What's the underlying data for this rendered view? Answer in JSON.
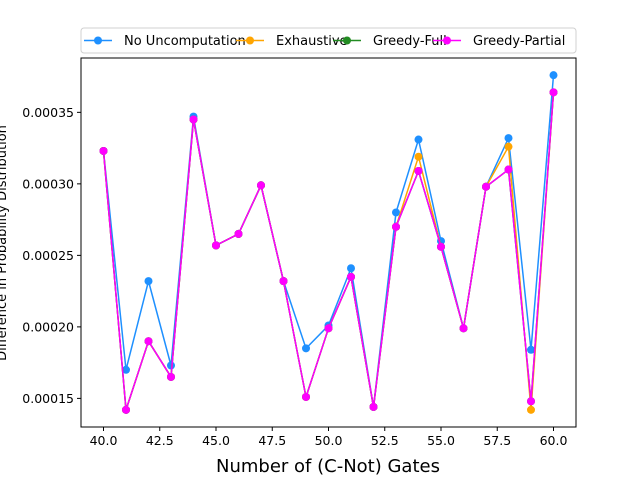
{
  "chart_data": {
    "type": "line",
    "xlabel": "Number of (C-Not) Gates",
    "ylabel": "Difference in Probability Distribution",
    "xlim": [
      39.0,
      61.0
    ],
    "ylim": [
      0.00013,
      0.000388
    ],
    "xticks": [
      "40.0",
      "42.5",
      "45.0",
      "47.5",
      "50.0",
      "52.5",
      "55.0",
      "57.5",
      "60.0"
    ],
    "xtick_values": [
      40,
      42.5,
      45,
      47.5,
      50,
      52.5,
      55,
      57.5,
      60
    ],
    "yticks": [
      "0.00015",
      "0.00020",
      "0.00025",
      "0.00030",
      "0.00035"
    ],
    "ytick_values": [
      0.00015,
      0.0002,
      0.00025,
      0.0003,
      0.00035
    ],
    "legend_position": "top-center",
    "grid": false,
    "x": [
      40,
      41,
      42,
      43,
      44,
      45,
      46,
      47,
      48,
      49,
      50,
      51,
      52,
      53,
      54,
      55,
      56,
      57,
      58,
      59,
      60
    ],
    "series": [
      {
        "name": "No Uncomputation",
        "color": "#1e90ff",
        "values": [
          0.000323,
          0.00017,
          0.000232,
          0.000173,
          0.000347,
          0.000257,
          0.000265,
          0.000299,
          0.000232,
          0.000185,
          0.000201,
          0.000241,
          0.000144,
          0.00028,
          0.000331,
          0.00026,
          0.000199,
          0.000298,
          0.000332,
          0.000184,
          0.000376
        ]
      },
      {
        "name": "Exhaustive",
        "color": "#ffa500",
        "values": [
          0.000323,
          0.000142,
          0.00019,
          0.000165,
          0.000345,
          0.000257,
          0.000265,
          0.000299,
          0.000232,
          0.000151,
          0.000199,
          0.000235,
          0.000144,
          0.00027,
          0.000319,
          0.000256,
          0.000199,
          0.000298,
          0.000326,
          0.000142,
          0.000364
        ]
      },
      {
        "name": "Greedy-Full",
        "color": "#228b22",
        "values": [
          0.000323,
          0.000142,
          0.00019,
          0.000165,
          0.000345,
          0.000257,
          0.000265,
          0.000299,
          0.000232,
          0.000151,
          0.000199,
          0.000235,
          0.000144,
          0.00027,
          0.000309,
          0.000256,
          0.000199,
          0.000298,
          0.00031,
          0.000148,
          0.000364
        ]
      },
      {
        "name": "Greedy-Partial",
        "color": "#ff00ff",
        "values": [
          0.000323,
          0.000142,
          0.00019,
          0.000165,
          0.000345,
          0.000257,
          0.000265,
          0.000299,
          0.000232,
          0.000151,
          0.000199,
          0.000235,
          0.000144,
          0.00027,
          0.000309,
          0.000256,
          0.000199,
          0.000298,
          0.00031,
          0.000148,
          0.000364
        ]
      }
    ]
  }
}
